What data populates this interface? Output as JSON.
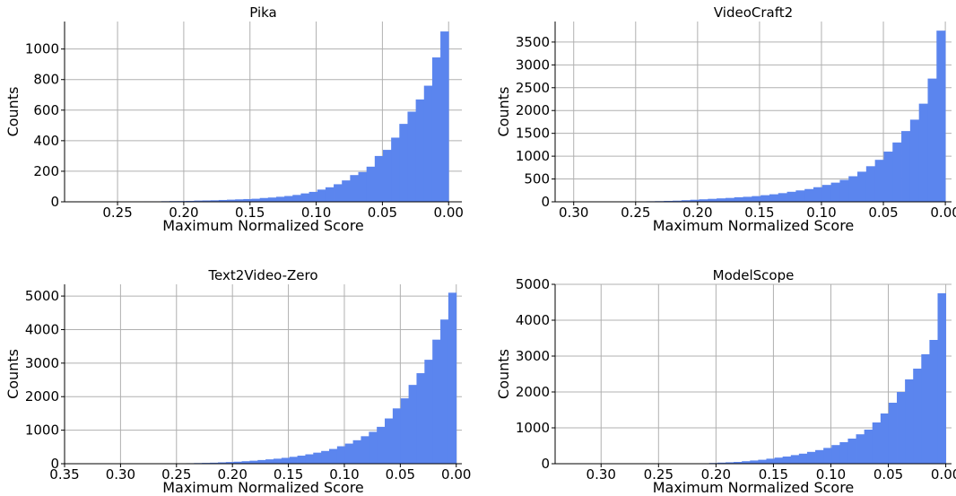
{
  "figure": {
    "background": "#ffffff",
    "bar_color": "#5b85ee",
    "grid_color": "#b0b0b0"
  },
  "chart_data": [
    {
      "type": "bar",
      "title": "Pika",
      "xlabel": "Maximum Normalized Score",
      "ylabel": "Counts",
      "x_reversed": true,
      "xlim": [
        0.29,
        -0.01
      ],
      "ylim": [
        0,
        1180
      ],
      "xticks": [
        0.25,
        0.2,
        0.15,
        0.1,
        0.05,
        0.0
      ],
      "xtick_labels": [
        "0.25",
        "0.20",
        "0.15",
        "0.10",
        "0.05",
        "0.00"
      ],
      "yticks": [
        0,
        200,
        400,
        600,
        800,
        1000
      ],
      "ytick_labels": [
        "0",
        "200",
        "400",
        "600",
        "800",
        "1000"
      ],
      "bin_width": 0.0062,
      "bin_starts": [
        0.2356,
        0.2294,
        0.2232,
        0.217,
        0.2108,
        0.2046,
        0.1984,
        0.1922,
        0.186,
        0.1798,
        0.1736,
        0.1674,
        0.1612,
        0.155,
        0.1488,
        0.1426,
        0.1364,
        0.1302,
        0.124,
        0.1178,
        0.1116,
        0.1054,
        0.0992,
        0.093,
        0.0868,
        0.0806,
        0.0744,
        0.0682,
        0.062,
        0.0558,
        0.0496,
        0.0434,
        0.0372,
        0.031,
        0.0248,
        0.0186,
        0.0124,
        0.0062,
        0.0
      ],
      "values": [
        2,
        2,
        3,
        3,
        4,
        5,
        5,
        6,
        8,
        9,
        10,
        12,
        14,
        16,
        18,
        20,
        25,
        28,
        33,
        38,
        45,
        55,
        65,
        80,
        95,
        115,
        140,
        175,
        195,
        230,
        300,
        340,
        420,
        510,
        590,
        670,
        760,
        945,
        1115
      ]
    },
    {
      "type": "bar",
      "title": "VideoCraft2",
      "xlabel": "Maximum Normalized Score",
      "ylabel": "Counts",
      "x_reversed": true,
      "xlim": [
        0.315,
        -0.005
      ],
      "ylim": [
        0,
        3950
      ],
      "xticks": [
        0.3,
        0.25,
        0.2,
        0.15,
        0.1,
        0.05,
        0.0
      ],
      "xtick_labels": [
        "0.30",
        "0.25",
        "0.20",
        "0.15",
        "0.10",
        "0.05",
        "0.00"
      ],
      "yticks": [
        0,
        500,
        1000,
        1500,
        2000,
        2500,
        3000,
        3500
      ],
      "ytick_labels": [
        "0",
        "500",
        "1000",
        "1500",
        "2000",
        "2500",
        "3000",
        "3500"
      ],
      "bin_width": 0.0071,
      "bin_starts": [
        0.2556,
        0.2485,
        0.2414,
        0.2343,
        0.2272,
        0.2201,
        0.213,
        0.2059,
        0.1988,
        0.1917,
        0.1846,
        0.1775,
        0.1704,
        0.1633,
        0.1562,
        0.1491,
        0.142,
        0.1349,
        0.1278,
        0.1207,
        0.1136,
        0.1065,
        0.0994,
        0.0923,
        0.0852,
        0.0781,
        0.071,
        0.0639,
        0.0568,
        0.0497,
        0.0426,
        0.0355,
        0.0284,
        0.0213,
        0.0142,
        0.0071,
        0.0
      ],
      "values": [
        5,
        8,
        10,
        12,
        15,
        20,
        25,
        35,
        45,
        55,
        65,
        75,
        85,
        100,
        110,
        125,
        145,
        165,
        190,
        220,
        250,
        280,
        320,
        370,
        420,
        480,
        560,
        660,
        780,
        920,
        1100,
        1300,
        1550,
        1800,
        2150,
        2700,
        3750
      ]
    },
    {
      "type": "bar",
      "title": "Text2Video-Zero",
      "xlabel": "Maximum Normalized Score",
      "ylabel": "Counts",
      "x_reversed": true,
      "xlim": [
        0.35,
        -0.005
      ],
      "ylim": [
        0,
        5350
      ],
      "xticks": [
        0.35,
        0.3,
        0.25,
        0.2,
        0.15,
        0.1,
        0.05,
        0.0
      ],
      "xtick_labels": [
        "0.35",
        "0.30",
        "0.25",
        "0.20",
        "0.15",
        "0.10",
        "0.05",
        "0.00"
      ],
      "yticks": [
        0,
        1000,
        2000,
        3000,
        4000,
        5000
      ],
      "ytick_labels": [
        "0",
        "1000",
        "2000",
        "3000",
        "4000",
        "5000"
      ],
      "bin_width": 0.0071,
      "bin_starts": [
        0.2414,
        0.2343,
        0.2272,
        0.2201,
        0.213,
        0.2059,
        0.1988,
        0.1917,
        0.1846,
        0.1775,
        0.1704,
        0.1633,
        0.1562,
        0.1491,
        0.142,
        0.1349,
        0.1278,
        0.1207,
        0.1136,
        0.1065,
        0.0994,
        0.0923,
        0.0852,
        0.0781,
        0.071,
        0.0639,
        0.0568,
        0.0497,
        0.0426,
        0.0355,
        0.0284,
        0.0213,
        0.0142,
        0.0071,
        0.0
      ],
      "values": [
        10,
        15,
        20,
        25,
        30,
        40,
        50,
        60,
        75,
        90,
        110,
        130,
        150,
        175,
        205,
        240,
        280,
        330,
        380,
        440,
        520,
        600,
        700,
        820,
        950,
        1100,
        1350,
        1650,
        1950,
        2350,
        2700,
        3100,
        3700,
        4300,
        5100
      ]
    },
    {
      "type": "bar",
      "title": "ModelScope",
      "xlabel": "Maximum Normalized Score",
      "ylabel": "Counts",
      "x_reversed": true,
      "xlim": [
        0.34,
        -0.005
      ],
      "ylim": [
        0,
        5000
      ],
      "xticks": [
        0.3,
        0.25,
        0.2,
        0.15,
        0.1,
        0.05,
        0.0
      ],
      "xtick_labels": [
        "0.30",
        "0.25",
        "0.20",
        "0.15",
        "0.10",
        "0.05",
        "0.00"
      ],
      "yticks": [
        0,
        1000,
        2000,
        3000,
        4000,
        5000
      ],
      "ytick_labels": [
        "0",
        "1000",
        "2000",
        "3000",
        "4000",
        "5000"
      ],
      "bin_width": 0.0071,
      "bin_starts": [
        0.2059,
        0.1988,
        0.1917,
        0.1846,
        0.1775,
        0.1704,
        0.1633,
        0.1562,
        0.1491,
        0.142,
        0.1349,
        0.1278,
        0.1207,
        0.1136,
        0.1065,
        0.0994,
        0.0923,
        0.0852,
        0.0781,
        0.071,
        0.0639,
        0.0568,
        0.0497,
        0.0426,
        0.0355,
        0.0284,
        0.0213,
        0.0142,
        0.0071,
        0.0
      ],
      "values": [
        10,
        20,
        30,
        40,
        50,
        70,
        90,
        110,
        140,
        170,
        200,
        240,
        280,
        330,
        380,
        440,
        520,
        600,
        700,
        820,
        950,
        1150,
        1400,
        1700,
        2000,
        2350,
        2650,
        3050,
        3450,
        4750
      ]
    }
  ]
}
